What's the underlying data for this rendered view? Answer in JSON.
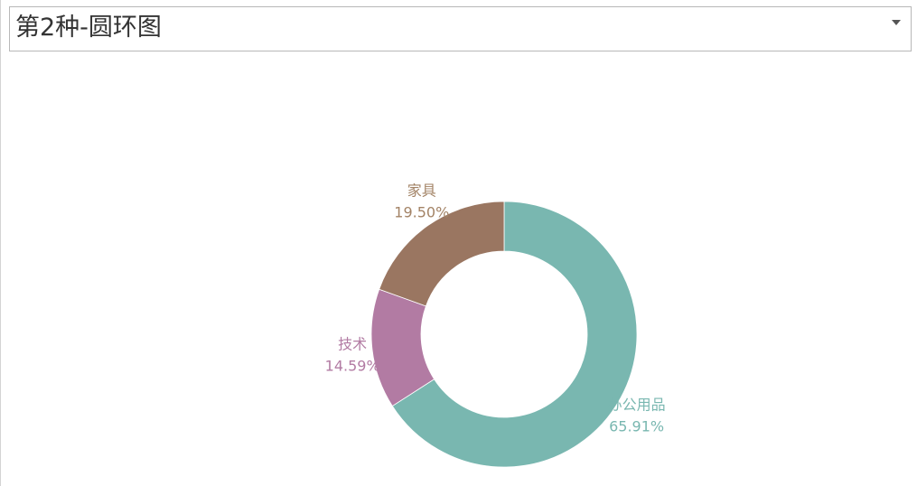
{
  "selector": {
    "value": "第2种-圆环图",
    "icon": "chevron-down-icon"
  },
  "chart_data": {
    "type": "pie",
    "variant": "donut",
    "start": "12 o'clock, clockwise",
    "categories": [
      "办公用品",
      "技术",
      "家具"
    ],
    "values": [
      65.91,
      14.59,
      19.5
    ],
    "labels": [
      "65.91%",
      "14.59%",
      "19.50%"
    ],
    "colors": [
      "#79b7b0",
      "#b27ba3",
      "#9a7661"
    ],
    "label_colors": [
      "#79b7b0",
      "#b27ba3",
      "#a38366"
    ],
    "unit": "%"
  }
}
